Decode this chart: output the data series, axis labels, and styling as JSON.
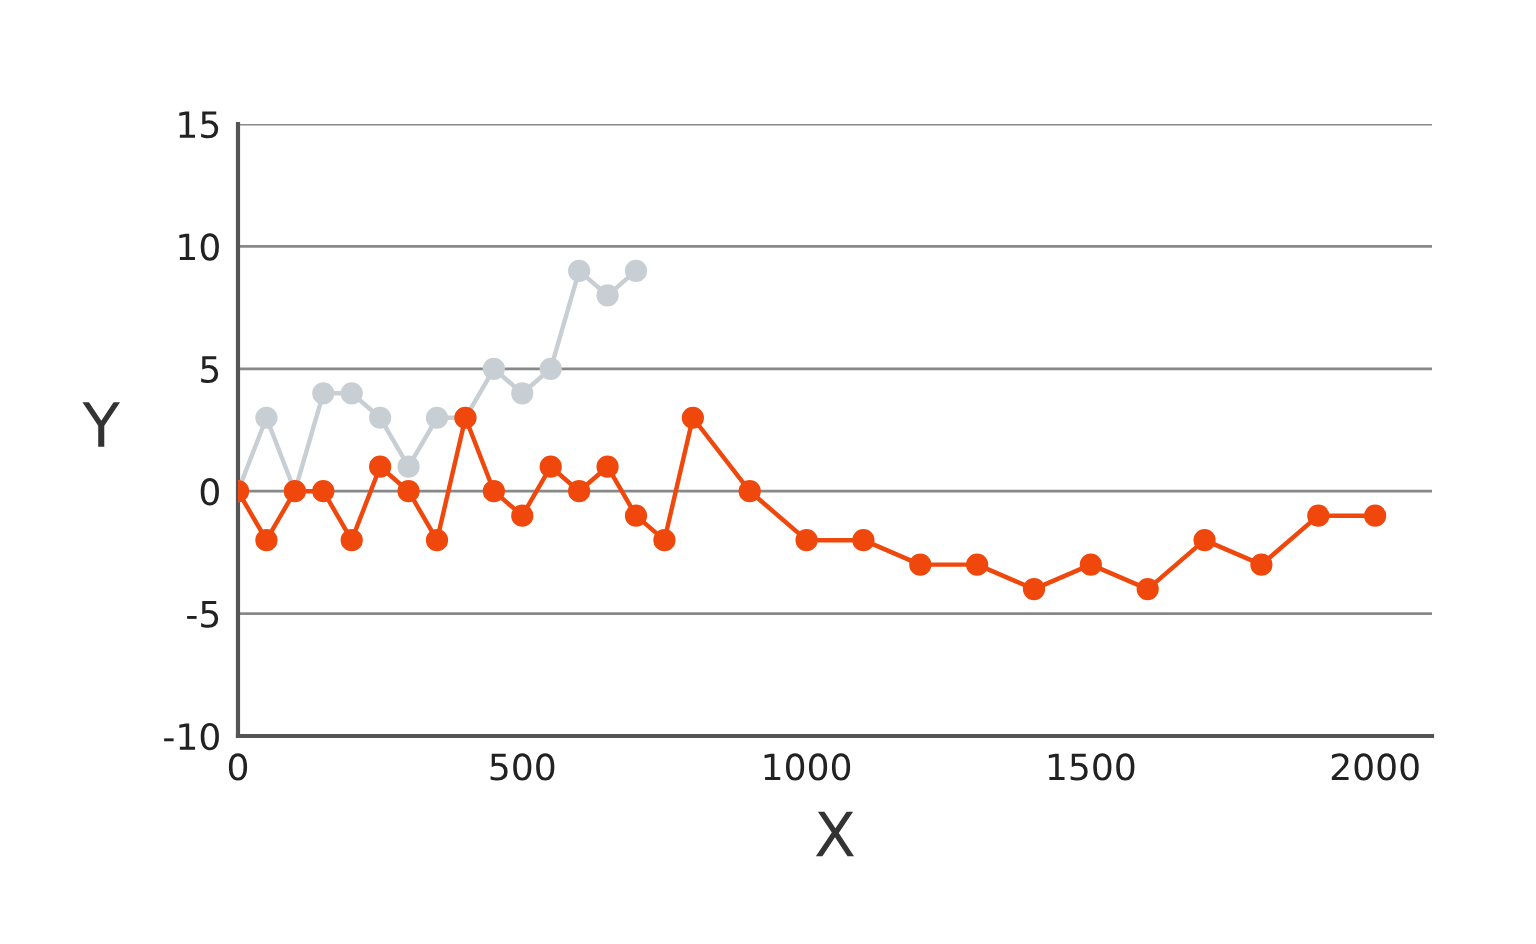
{
  "chart_data": {
    "type": "line",
    "xlabel": "X",
    "ylabel": "Y",
    "xlim": [
      0,
      2100
    ],
    "ylim": [
      -10,
      15
    ],
    "xticks": [
      0,
      500,
      1000,
      1500,
      2000
    ],
    "yticks": [
      -10,
      -5,
      0,
      5,
      10,
      15
    ],
    "grid": "y",
    "marker": "circle",
    "line_style": "solid",
    "series": [
      {
        "color": "#c8cfd4",
        "x": [
          0,
          50,
          100,
          150,
          200,
          250,
          300,
          350,
          400,
          450,
          500,
          550,
          600,
          650,
          700
        ],
        "values": [
          0,
          3,
          0,
          4,
          4,
          3,
          1,
          3,
          3,
          5,
          4,
          5,
          9,
          8,
          9
        ]
      },
      {
        "color": "#f0480c",
        "x": [
          0,
          50,
          100,
          150,
          200,
          250,
          300,
          350,
          400,
          450,
          500,
          550,
          600,
          650,
          700,
          750,
          800,
          900,
          1000,
          1100,
          1200,
          1300,
          1400,
          1500,
          1600,
          1700,
          1800,
          1900,
          2000
        ],
        "values": [
          0,
          -2,
          0,
          0,
          -2,
          1,
          0,
          -2,
          3,
          0,
          -1,
          1,
          0,
          1,
          -1,
          -2,
          3,
          0,
          -2,
          -2,
          -3,
          -3,
          -4,
          -3,
          -4,
          -2,
          -3,
          -1,
          -1
        ]
      }
    ]
  }
}
